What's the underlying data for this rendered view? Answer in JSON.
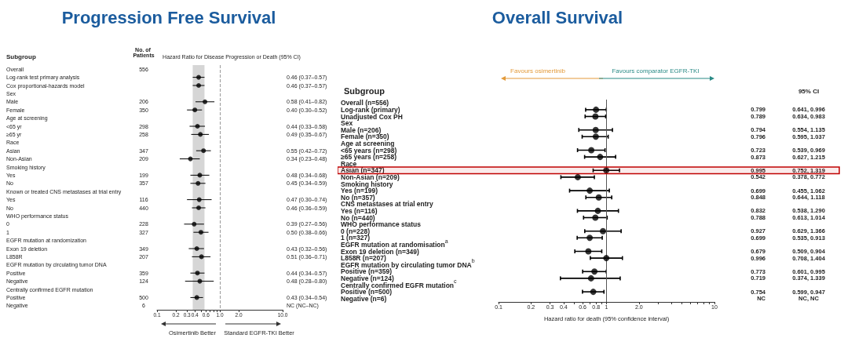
{
  "chart_data": [
    {
      "type": "scatter",
      "title": "Progression Free Survival",
      "orientation": "horizontal",
      "xlabel": "Hazard Ratio for Disease Progression or Death (95% CI)",
      "log": "x",
      "marker": "circle",
      "grid": false,
      "categories": [
        "Overall",
        "Log-rank test primary analysis",
        "Cox proportional-hazards model",
        "Sex",
        "Male",
        "Female",
        "Age at screening",
        "<65 yr",
        "≥65 yr",
        "Race",
        "Asian",
        "Non-Asian",
        "Smoking history",
        "Yes",
        "No",
        "Known or treated CNS metastases at trial entry",
        "Yes",
        "No",
        "WHO performance status",
        "0",
        "1",
        "EGFR mutation at randomization",
        "Exon 19 deletion",
        "L858R",
        "EGFR mutation by circulating tumor DNA",
        "Positive",
        "Negative",
        "Centrally confirmed EGFR mutation",
        "Positive",
        "Negative"
      ],
      "values": [
        null,
        0.46,
        0.46,
        null,
        0.58,
        0.4,
        null,
        0.44,
        0.49,
        null,
        0.55,
        0.34,
        null,
        0.48,
        0.45,
        null,
        0.47,
        0.46,
        null,
        0.39,
        0.5,
        null,
        0.43,
        0.51,
        null,
        0.44,
        0.48,
        null,
        0.43,
        null
      ],
      "errors": [
        null,
        [
          0.37,
          0.57
        ],
        [
          0.37,
          0.57
        ],
        null,
        [
          0.41,
          0.82
        ],
        [
          0.3,
          0.52
        ],
        null,
        [
          0.33,
          0.58
        ],
        [
          0.35,
          0.67
        ],
        null,
        [
          0.42,
          0.72
        ],
        [
          0.23,
          0.48
        ],
        null,
        [
          0.34,
          0.68
        ],
        [
          0.34,
          0.59
        ],
        null,
        [
          0.3,
          0.74
        ],
        [
          0.36,
          0.59
        ],
        null,
        [
          0.27,
          0.56
        ],
        [
          0.38,
          0.66
        ],
        null,
        [
          0.32,
          0.56
        ],
        [
          0.36,
          0.71
        ],
        null,
        [
          0.34,
          0.57
        ],
        [
          0.28,
          0.8
        ],
        null,
        [
          0.34,
          0.54
        ],
        null
      ],
      "value_labels": [
        null,
        "0.46 (0.37–0.57)",
        "0.46 (0.37–0.57)",
        null,
        "0.58 (0.41–0.82)",
        "0.40 (0.30–0.52)",
        null,
        "0.44 (0.33–0.58)",
        "0.49 (0.35–0.67)",
        null,
        "0.55 (0.42–0.72)",
        "0.34 (0.23–0.48)",
        null,
        "0.48 (0.34–0.68)",
        "0.45 (0.34–0.59)",
        null,
        "0.47 (0.30–0.74)",
        "0.46 (0.36–0.59)",
        null,
        "0.39 (0.27–0.56)",
        "0.50 (0.38–0.66)",
        null,
        "0.43 (0.32–0.56)",
        "0.51 (0.36–0.71)",
        null,
        "0.44 (0.34–0.57)",
        "0.48 (0.28–0.80)",
        null,
        "0.43 (0.34–0.54)",
        "NC (NC–NC)"
      ],
      "xlim": [
        0.1,
        10
      ],
      "xticks": [
        0.1,
        0.2,
        0.3,
        0.4,
        {
          "value": 0.5,
          "label": null
        },
        0.6,
        {
          "value": 0.7,
          "label": null
        },
        {
          "value": 0.8,
          "label": null
        },
        {
          "value": 0.9,
          "label": null
        },
        {
          "value": 1,
          "label": "1.0"
        },
        {
          "value": 2,
          "label": "2.0"
        },
        {
          "value": 10,
          "label": "10.0"
        }
      ],
      "ref_lines": [
        {
          "axis": "x",
          "value": 1,
          "line_style": "dashed",
          "color": "#9a9a9a"
        }
      ],
      "bands": [
        {
          "axis": "x",
          "from": 0.37,
          "to": 0.57,
          "color": "#d6d6d6"
        }
      ],
      "annotations": [
        "Subgroup",
        "No. of Patients",
        "Osimertinib Better",
        "Standard EGFR-TKI Better",
        "556",
        "206",
        "350",
        "298",
        "258",
        "347",
        "209",
        "199",
        "357",
        "116",
        "440",
        "228",
        "327",
        "349",
        "207",
        "359",
        "124",
        "500",
        "6"
      ]
    },
    {
      "type": "scatter",
      "title": "Overall Survival",
      "orientation": "horizontal",
      "xlabel": "Hazard ratio for death (95% confidence interval)",
      "log": "x",
      "marker": "circle",
      "grid": false,
      "categories": [
        "Overall (n=556)",
        "Log-rank (primary)",
        "Unadjusted Cox PH",
        "Sex",
        "Male (n=206)",
        "Female (n=350)",
        "Age at screening",
        "<65 years (n=298)",
        "≥65 years (n=258)",
        "Race",
        "Asian (n=347)",
        "Non-Asian (n=209)",
        "Smoking history",
        "Yes (n=199)",
        "No (n=357)",
        "CNS metastases at trial entry",
        "Yes (n=116)",
        "No (n=440)",
        "WHO performance status",
        "0 (n=228)",
        "1 (n=327)",
        "EGFR mutation at randomisation$^{a}$",
        "Exon 19 deletion (n=349)",
        "L858R (n=207)",
        "EGFR mutation by circulating tumor DNA$^{b}$",
        "Positive (n=359)",
        "Negative (n=124)",
        "Centrally confirmed EGFR mutation$^{c}$",
        "Positive (n=500)",
        "Negative (n=6)"
      ],
      "values": [
        null,
        0.799,
        0.789,
        null,
        0.794,
        0.796,
        null,
        0.723,
        0.873,
        null,
        0.995,
        0.542,
        null,
        0.699,
        0.848,
        null,
        0.832,
        0.788,
        null,
        0.927,
        0.699,
        null,
        0.679,
        0.996,
        null,
        0.773,
        0.719,
        null,
        0.754,
        null
      ],
      "errors": [
        null,
        [
          0.641,
          0.996
        ],
        [
          0.634,
          0.983
        ],
        null,
        [
          0.554,
          1.135
        ],
        [
          0.595,
          1.037
        ],
        null,
        [
          0.539,
          0.969
        ],
        [
          0.627,
          1.215
        ],
        null,
        [
          0.752,
          1.319
        ],
        [
          0.378,
          0.772
        ],
        null,
        [
          0.455,
          1.062
        ],
        [
          0.644,
          1.118
        ],
        null,
        [
          0.538,
          1.29
        ],
        [
          0.613,
          1.014
        ],
        null,
        [
          0.629,
          1.366
        ],
        [
          0.535,
          0.913
        ],
        null,
        [
          0.509,
          0.904
        ],
        [
          0.708,
          1.404
        ],
        null,
        [
          0.601,
          0.995
        ],
        [
          0.374,
          1.339
        ],
        null,
        [
          0.599,
          0.947
        ],
        null
      ],
      "value_labels": [
        null,
        "0.799",
        "0.789",
        null,
        "0.794",
        "0.796",
        null,
        "0.723",
        "0.873",
        null,
        "0.995",
        "0.542",
        null,
        "0.699",
        "0.848",
        null,
        "0.832",
        "0.788",
        null,
        "0.927",
        "0.699",
        null,
        "0.679",
        "0.996",
        null,
        "0.773",
        "0.719",
        null,
        "0.754",
        "NC"
      ],
      "xlim": [
        0.1,
        10
      ],
      "xticks": [
        0.1,
        0.2,
        0.3,
        0.4,
        {
          "value": 0.5,
          "label": null
        },
        0.6,
        {
          "value": 0.7,
          "label": null
        },
        0.8,
        {
          "value": 0.9,
          "label": null
        },
        1,
        {
          "value": 2,
          "label": "2.0"
        },
        {
          "value": 3,
          "label": null
        },
        {
          "value": 4,
          "label": null
        },
        {
          "value": 5,
          "label": null
        },
        {
          "value": 6,
          "label": null
        },
        {
          "value": 7,
          "label": null
        },
        {
          "value": 8,
          "label": null
        },
        {
          "value": 9,
          "label": null
        },
        10
      ],
      "ref_lines": [
        {
          "axis": "x",
          "value": 1,
          "color": "#555555"
        }
      ],
      "bands": [
        {
          "axis": "y",
          "from": "Asian (n=347)",
          "to": "Asian (n=347)",
          "color": "#c00000"
        }
      ],
      "annotations": [
        "Subgroup",
        "95% CI",
        "Favours osimertinib",
        "Favours comparator EGFR-TKI",
        "0.641, 0.996",
        "0.634, 0.983",
        "0.554, 1.135",
        "0.595, 1.037",
        "0.539, 0.969",
        "0.627, 1.215",
        "0.752, 1.319",
        "0.378, 0.772",
        "0.455, 1.062",
        "0.644, 1.118",
        "0.538, 1.290",
        "0.613, 1.014",
        "0.629, 1.366",
        "0.535, 0.913",
        "0.509, 0.904",
        "0.708, 1.404",
        "0.601, 0.995",
        "0.374, 1.339",
        "0.599, 0.947",
        "NC, NC"
      ]
    }
  ]
}
